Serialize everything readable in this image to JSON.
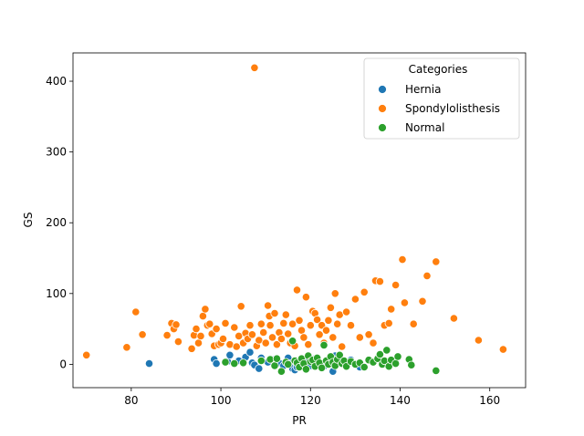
{
  "chart_data": {
    "type": "scatter",
    "xlabel": "PR",
    "ylabel": "GS",
    "xlim": [
      67,
      168
    ],
    "ylim": [
      -33,
      440
    ],
    "xticks": [
      80,
      100,
      120,
      140,
      160
    ],
    "yticks": [
      0,
      100,
      200,
      300,
      400
    ],
    "grid": false,
    "legend": {
      "title": "Categories",
      "placement": "top-right"
    },
    "series": [
      {
        "name": "Hernia",
        "color": "#1f77b4",
        "points": [
          [
            84,
            1
          ],
          [
            98.5,
            7
          ],
          [
            99,
            1
          ],
          [
            101.5,
            4
          ],
          [
            102,
            13
          ],
          [
            104,
            5
          ],
          [
            105.5,
            10
          ],
          [
            106.5,
            17
          ],
          [
            107,
            2
          ],
          [
            107.5,
            -1
          ],
          [
            108.5,
            -6
          ],
          [
            109,
            9
          ],
          [
            110.5,
            3
          ],
          [
            111.5,
            7
          ],
          [
            112.5,
            8
          ],
          [
            113,
            2
          ],
          [
            114,
            -2
          ],
          [
            114.5,
            4
          ],
          [
            115,
            9
          ],
          [
            115.5,
            1
          ],
          [
            116,
            -6
          ],
          [
            116.5,
            -8
          ],
          [
            117,
            -4
          ],
          [
            117.5,
            3
          ],
          [
            118,
            6
          ],
          [
            118.5,
            0
          ],
          [
            119.5,
            5
          ],
          [
            120,
            -2
          ],
          [
            121,
            8
          ],
          [
            122,
            1
          ],
          [
            123,
            -3
          ],
          [
            124,
            7
          ],
          [
            124.5,
            3
          ],
          [
            125,
            -10
          ],
          [
            125.5,
            12
          ],
          [
            126,
            5
          ],
          [
            127,
            2
          ],
          [
            129,
            6
          ],
          [
            131,
            -4
          ],
          [
            133,
            6
          ],
          [
            134,
            3
          ]
        ]
      },
      {
        "name": "Spondylolisthesis",
        "color": "#ff7f0e",
        "points": [
          [
            70,
            13
          ],
          [
            79,
            24
          ],
          [
            81,
            74
          ],
          [
            82.5,
            42
          ],
          [
            88,
            41
          ],
          [
            89,
            58
          ],
          [
            89.5,
            50
          ],
          [
            90,
            56
          ],
          [
            90.5,
            32
          ],
          [
            93.5,
            22
          ],
          [
            94,
            41
          ],
          [
            94.5,
            50
          ],
          [
            95,
            30
          ],
          [
            95.5,
            40
          ],
          [
            96,
            68
          ],
          [
            96.5,
            78
          ],
          [
            97,
            55
          ],
          [
            97.5,
            57
          ],
          [
            98,
            43
          ],
          [
            98.5,
            26
          ],
          [
            99,
            50
          ],
          [
            99.5,
            28
          ],
          [
            100,
            30
          ],
          [
            100.5,
            36
          ],
          [
            101,
            58
          ],
          [
            102,
            28
          ],
          [
            103,
            52
          ],
          [
            103.5,
            25
          ],
          [
            104,
            40
          ],
          [
            104.5,
            82
          ],
          [
            105,
            30
          ],
          [
            105.5,
            44
          ],
          [
            106,
            36
          ],
          [
            106.5,
            55
          ],
          [
            107,
            42
          ],
          [
            107.5,
            419
          ],
          [
            108,
            26
          ],
          [
            108.5,
            34
          ],
          [
            109,
            57
          ],
          [
            109.5,
            45
          ],
          [
            110,
            30
          ],
          [
            110.5,
            83
          ],
          [
            110.8,
            68
          ],
          [
            111,
            55
          ],
          [
            111.5,
            38
          ],
          [
            112,
            72
          ],
          [
            112.5,
            28
          ],
          [
            113,
            45
          ],
          [
            113.5,
            36
          ],
          [
            114,
            58
          ],
          [
            114.5,
            70
          ],
          [
            115,
            43
          ],
          [
            115.5,
            30
          ],
          [
            116,
            57
          ],
          [
            116.5,
            26
          ],
          [
            117,
            105
          ],
          [
            117.5,
            62
          ],
          [
            118,
            48
          ],
          [
            118.5,
            38
          ],
          [
            119,
            95
          ],
          [
            119.5,
            28
          ],
          [
            120,
            55
          ],
          [
            120.5,
            75
          ],
          [
            121,
            72
          ],
          [
            121.5,
            63
          ],
          [
            122,
            42
          ],
          [
            122.5,
            55
          ],
          [
            123,
            30
          ],
          [
            123.5,
            48
          ],
          [
            124,
            62
          ],
          [
            124.5,
            80
          ],
          [
            125,
            38
          ],
          [
            125.5,
            100
          ],
          [
            126,
            57
          ],
          [
            126.5,
            70
          ],
          [
            127,
            25
          ],
          [
            128,
            74
          ],
          [
            129,
            55
          ],
          [
            130,
            92
          ],
          [
            131,
            38
          ],
          [
            132,
            102
          ],
          [
            133,
            42
          ],
          [
            134,
            30
          ],
          [
            134.5,
            118
          ],
          [
            135.5,
            117
          ],
          [
            136.5,
            55
          ],
          [
            137.5,
            58
          ],
          [
            138,
            78
          ],
          [
            139,
            112
          ],
          [
            140.5,
            148
          ],
          [
            141,
            87
          ],
          [
            143,
            57
          ],
          [
            145,
            89
          ],
          [
            146,
            125
          ],
          [
            148,
            145
          ],
          [
            152,
            65
          ],
          [
            157.5,
            34
          ],
          [
            163,
            21
          ]
        ]
      },
      {
        "name": "Normal",
        "color": "#2ca02c",
        "points": [
          [
            101,
            3
          ],
          [
            103,
            1
          ],
          [
            105,
            2
          ],
          [
            109,
            5
          ],
          [
            111,
            7
          ],
          [
            112,
            -2
          ],
          [
            112.5,
            8
          ],
          [
            113.5,
            -10
          ],
          [
            114.5,
            3
          ],
          [
            115,
            0
          ],
          [
            116,
            33
          ],
          [
            116.5,
            5
          ],
          [
            117,
            2
          ],
          [
            117.5,
            -4
          ],
          [
            118,
            8
          ],
          [
            118.5,
            1
          ],
          [
            119,
            -7
          ],
          [
            119.5,
            12
          ],
          [
            120,
            4
          ],
          [
            120.5,
            6
          ],
          [
            121,
            -3
          ],
          [
            121.5,
            9
          ],
          [
            122,
            2
          ],
          [
            122.5,
            -5
          ],
          [
            123,
            27
          ],
          [
            123.5,
            5
          ],
          [
            124,
            0
          ],
          [
            124.5,
            11
          ],
          [
            125,
            3
          ],
          [
            125.5,
            -2
          ],
          [
            126,
            7
          ],
          [
            126.5,
            13
          ],
          [
            127,
            1
          ],
          [
            127.5,
            5
          ],
          [
            128,
            -3
          ],
          [
            129,
            4
          ],
          [
            130,
            0
          ],
          [
            131,
            2
          ],
          [
            132,
            -4
          ],
          [
            133,
            6
          ],
          [
            134,
            3
          ],
          [
            135,
            8
          ],
          [
            135.5,
            14
          ],
          [
            136,
            0
          ],
          [
            136.5,
            5
          ],
          [
            137,
            20
          ],
          [
            137.5,
            -3
          ],
          [
            138,
            6
          ],
          [
            139,
            1
          ],
          [
            139.5,
            11
          ],
          [
            142,
            7
          ],
          [
            142.5,
            -1
          ],
          [
            148,
            -9
          ]
        ]
      }
    ]
  }
}
